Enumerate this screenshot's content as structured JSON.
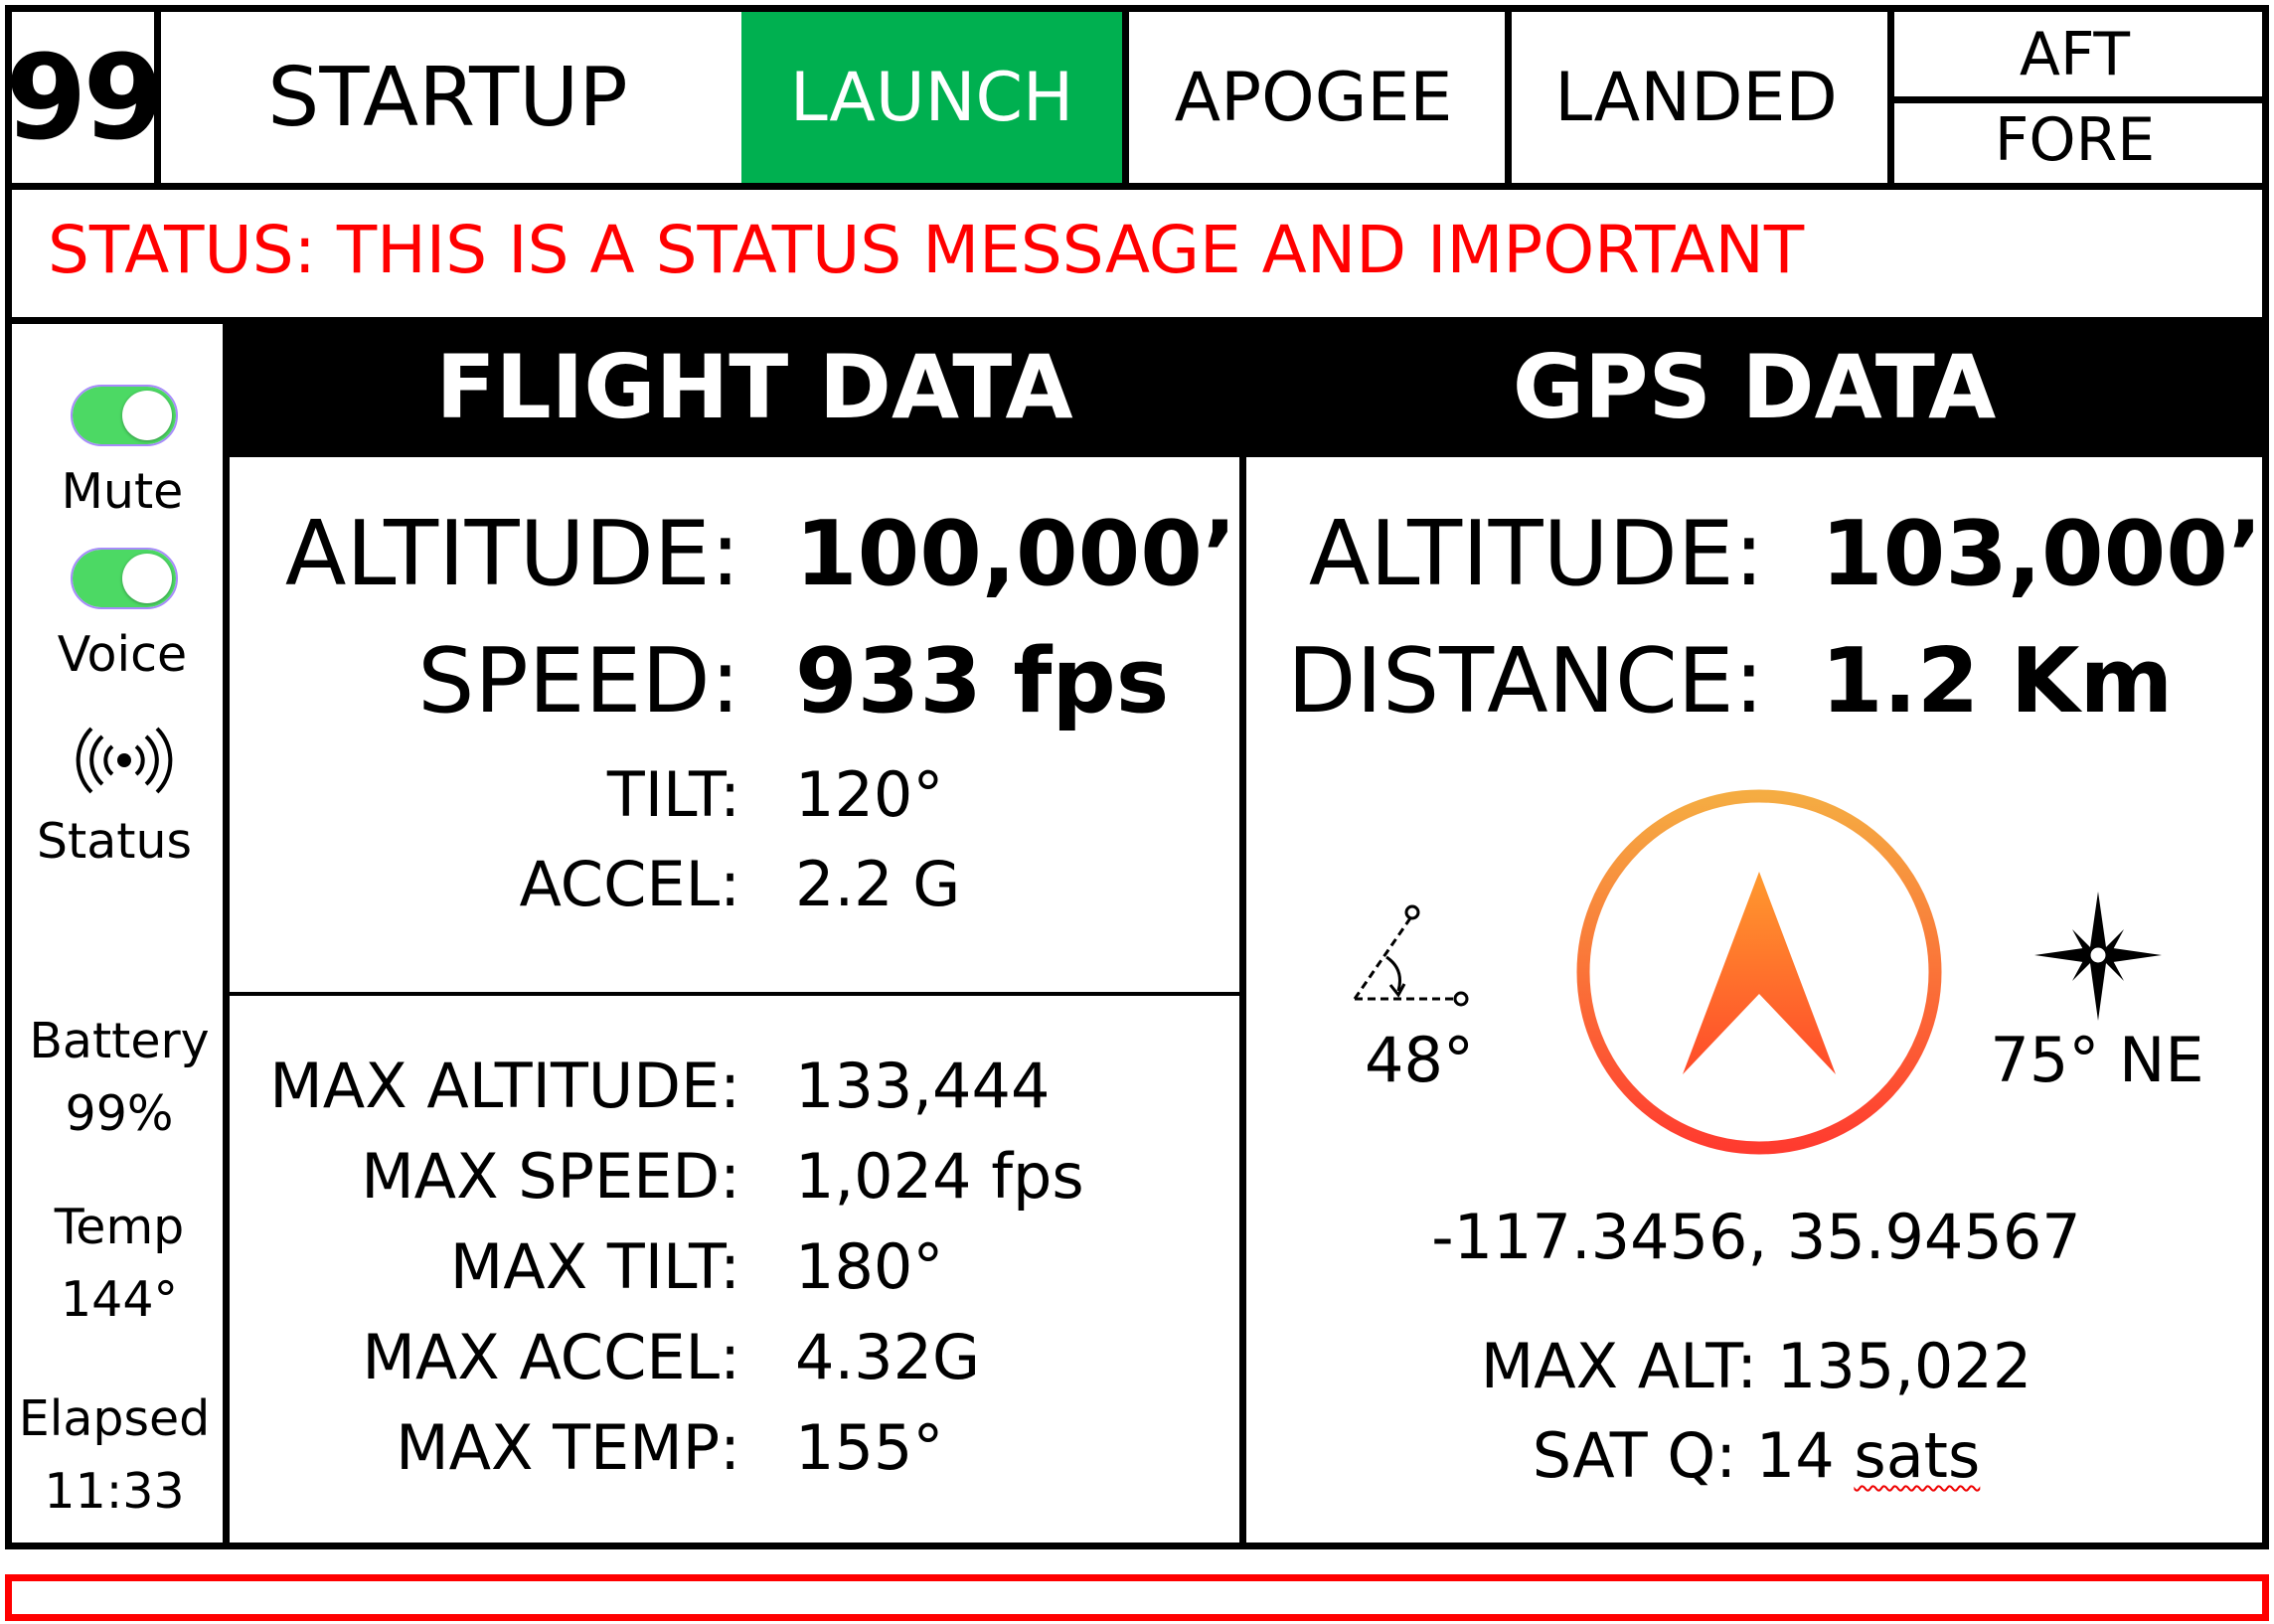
{
  "header": {
    "count": "99",
    "stages": [
      {
        "label": "STARTUP",
        "active": false
      },
      {
        "label": "LAUNCH",
        "active": true
      },
      {
        "label": "APOGEE",
        "active": false
      },
      {
        "label": "LANDED",
        "active": false
      }
    ],
    "aft_label": "AFT",
    "fore_label": "FORE"
  },
  "status": {
    "message": "STATUS: THIS IS A STATUS MESSAGE AND IMPORTANT",
    "color": "#ff0000"
  },
  "sidebar": {
    "mute_label": "Mute",
    "mute_on": true,
    "voice_label": "Voice",
    "voice_on": true,
    "status_label": "Status",
    "status_icon": "radio-broadcast-icon",
    "battery_label": "Battery",
    "battery_value": "99%",
    "temp_label": "Temp",
    "temp_value": "144°",
    "elapsed_label": "Elapsed",
    "elapsed_value": "11:33"
  },
  "flight": {
    "title": "FLIGHT DATA",
    "altitude_label": "ALTITUDE:",
    "altitude_value": "100,000’",
    "speed_label": "SPEED:",
    "speed_value": "933 fps",
    "tilt_label": "TILT:",
    "tilt_value": "120°",
    "accel_label": "ACCEL:",
    "accel_value": "2.2 G",
    "max": [
      {
        "label": "MAX ALTITUDE:",
        "value": "133,444"
      },
      {
        "label": "MAX SPEED:",
        "value": "1,024 fps"
      },
      {
        "label": "MAX TILT:",
        "value": "180°"
      },
      {
        "label": "MAX ACCEL:",
        "value": "4.32G"
      },
      {
        "label": "MAX TEMP:",
        "value": "155°"
      }
    ]
  },
  "gps": {
    "title": "GPS DATA",
    "altitude_label": "ALTITUDE:",
    "altitude_value": "103,000’",
    "distance_label": "DISTANCE:",
    "distance_value": "1.2 Km",
    "angle_value": "48°",
    "angle_icon": "angle-icon",
    "compass_icon": "navigation-arrow-icon",
    "heading_value": "75° NE",
    "heading_icon": "compass-star-icon",
    "coordinates": "-117.3456, 35.94567",
    "max_alt": "MAX ALT: 135,022",
    "sat_label": "SAT Q: 14 ",
    "sat_unit": "sats"
  },
  "colors": {
    "active_stage": "#00b050",
    "toggle_on": "#4cd964",
    "alert_border": "#ff0000",
    "compass_ring_top": "#f5ac42",
    "compass_ring_bottom": "#ff3b2f"
  }
}
